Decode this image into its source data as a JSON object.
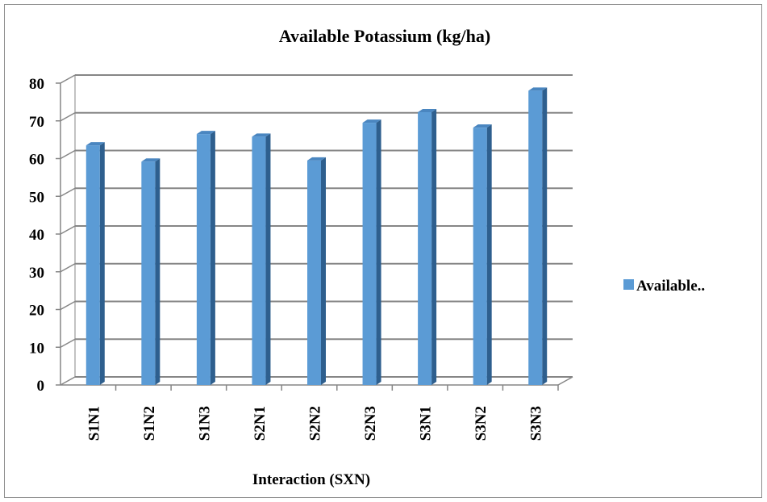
{
  "chart_data": {
    "type": "bar",
    "title": "Available Potassium (kg/ha)",
    "xlabel": "Interaction (SXN)",
    "ylabel": "",
    "categories": [
      "S1N1",
      "S1N2",
      "S1N3",
      "S2N1",
      "S2N2",
      "S2N3",
      "S3N1",
      "S3N2",
      "S3N3"
    ],
    "series": [
      {
        "name": "Available..",
        "values": [
          63.5,
          59.2,
          66.5,
          65.8,
          59.5,
          69.5,
          72.3,
          68.2,
          78.0
        ]
      }
    ],
    "ylim": [
      0,
      80
    ],
    "yticks": [
      0,
      10,
      20,
      30,
      40,
      50,
      60,
      70,
      80
    ],
    "grid": true,
    "legend_position": "right",
    "style": "3d-column",
    "colors": {
      "bar_front": "#5b9bd5",
      "bar_side": "#2e5f8e",
      "bar_top": "#4a86c0",
      "grid": "#868686"
    }
  }
}
